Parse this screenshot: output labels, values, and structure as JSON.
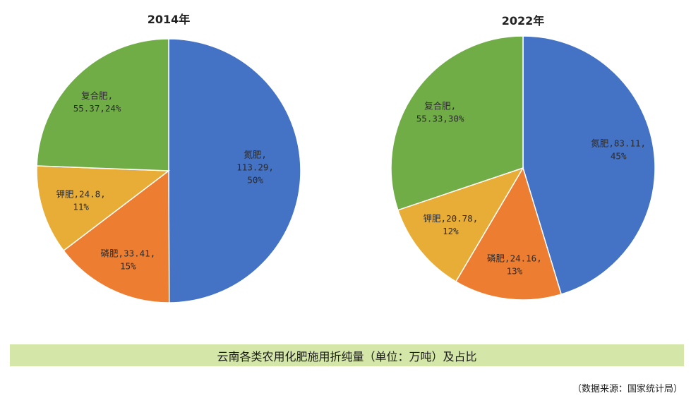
{
  "chart_data": [
    {
      "type": "pie",
      "title": "2014年",
      "colors": [
        "#4472c4",
        "#ed7d31",
        "#e8ad36",
        "#70ad47"
      ],
      "slices": [
        {
          "name": "氮肥",
          "value": 113.29,
          "percent": "50%",
          "label_lines": [
            "氮肥,",
            "113.29,",
            "50%"
          ]
        },
        {
          "name": "磷肥",
          "value": 33.41,
          "percent": "15%",
          "label_lines": [
            "磷肥,33.41,",
            "15%"
          ]
        },
        {
          "name": "钾肥",
          "value": 24.8,
          "percent": "11%",
          "label_lines": [
            "钾肥,24.8,",
            "11%"
          ]
        },
        {
          "name": "复合肥",
          "value": 55.37,
          "percent": "24%",
          "label_lines": [
            "复合肥,",
            "55.37,24%"
          ]
        }
      ]
    },
    {
      "type": "pie",
      "title": "2022年",
      "colors": [
        "#4472c4",
        "#ed7d31",
        "#e8ad36",
        "#70ad47"
      ],
      "slices": [
        {
          "name": "氮肥",
          "value": 83.11,
          "percent": "45%",
          "label_lines": [
            "氮肥,83.11,",
            "45%"
          ]
        },
        {
          "name": "磷肥",
          "value": 24.16,
          "percent": "13%",
          "label_lines": [
            "磷肥,24.16,",
            "13%"
          ]
        },
        {
          "name": "钾肥",
          "value": 20.78,
          "percent": "12%",
          "label_lines": [
            "钾肥,20.78,",
            "12%"
          ]
        },
        {
          "name": "复合肥",
          "value": 55.33,
          "percent": "30%",
          "label_lines": [
            "复合肥,",
            "55.33,30%"
          ]
        }
      ]
    }
  ],
  "caption": "云南各类农用化肥施用折纯量（单位：万吨）及占比",
  "source": "（数据来源：国家统计局）"
}
